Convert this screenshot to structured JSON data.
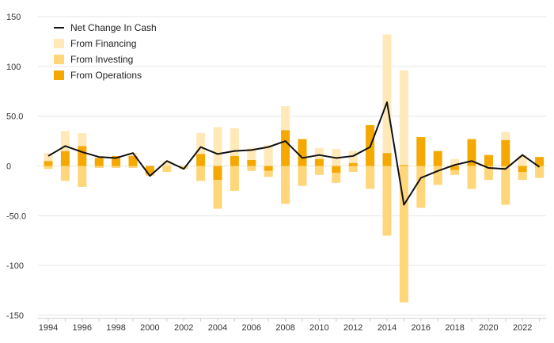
{
  "chart_data": {
    "type": "bar",
    "title": "",
    "xlabel": "",
    "ylabel": "",
    "ylim": [
      -150,
      150
    ],
    "y_ticks": [
      "150",
      "100",
      "50.0",
      "0",
      "-50.0",
      "-100",
      "-150"
    ],
    "y_tick_values": [
      150,
      100,
      50,
      0,
      -50,
      -100,
      -150
    ],
    "x_tick_labels": [
      "1994",
      "1996",
      "1998",
      "2000",
      "2002",
      "2004",
      "2006",
      "2008",
      "2010",
      "2012",
      "2014",
      "2016",
      "2018",
      "2020",
      "2022"
    ],
    "years": [
      1994,
      1995,
      1996,
      1997,
      1998,
      1999,
      2000,
      2001,
      2002,
      2003,
      2004,
      2005,
      2006,
      2007,
      2008,
      2009,
      2010,
      2011,
      2012,
      2013,
      2014,
      2015,
      2016,
      2017,
      2018,
      2019,
      2020,
      2021,
      2022,
      2023
    ],
    "grid": true,
    "stacked": true,
    "legend_position": "top-left",
    "series": [
      {
        "name": "Net Change In Cash",
        "kind": "line",
        "color": "#111111",
        "values": [
          10,
          20,
          14,
          9,
          8,
          13,
          -10,
          5,
          -3,
          19,
          12,
          15,
          16,
          19,
          25,
          8,
          11,
          8,
          10,
          19,
          64,
          -39,
          -12,
          -5,
          1,
          5,
          -2,
          -3,
          11,
          -1
        ]
      },
      {
        "name": "From Financing",
        "kind": "bar",
        "color": "#ffe9b8",
        "values": [
          8,
          20,
          13,
          0,
          0,
          3,
          0,
          5,
          0,
          21,
          39,
          28,
          12,
          21,
          24,
          0,
          11,
          17,
          12,
          0,
          119,
          95,
          0,
          0,
          7,
          0,
          0,
          8,
          11,
          0
        ]
      },
      {
        "name": "From Investing",
        "kind": "bar",
        "color": "#ffd67a",
        "values": [
          -3,
          -15,
          -21,
          -2,
          -2,
          -2,
          -2,
          -6,
          -3,
          -15,
          -29,
          -25,
          -5,
          -6,
          -38,
          -20,
          -9,
          -10,
          -6,
          -23,
          -70,
          -137,
          -42,
          -19,
          -5,
          -23,
          -14,
          -39,
          -8,
          -12
        ]
      },
      {
        "name": "From Operations",
        "kind": "bar",
        "color": "#f5a800",
        "values": [
          5,
          15,
          20,
          8,
          10,
          10,
          -8,
          0,
          0,
          12,
          -14,
          10,
          6,
          -5,
          36,
          27,
          7,
          -7,
          3,
          41,
          13,
          1,
          29,
          15,
          -4,
          27,
          11,
          26,
          -6,
          9
        ]
      }
    ]
  }
}
